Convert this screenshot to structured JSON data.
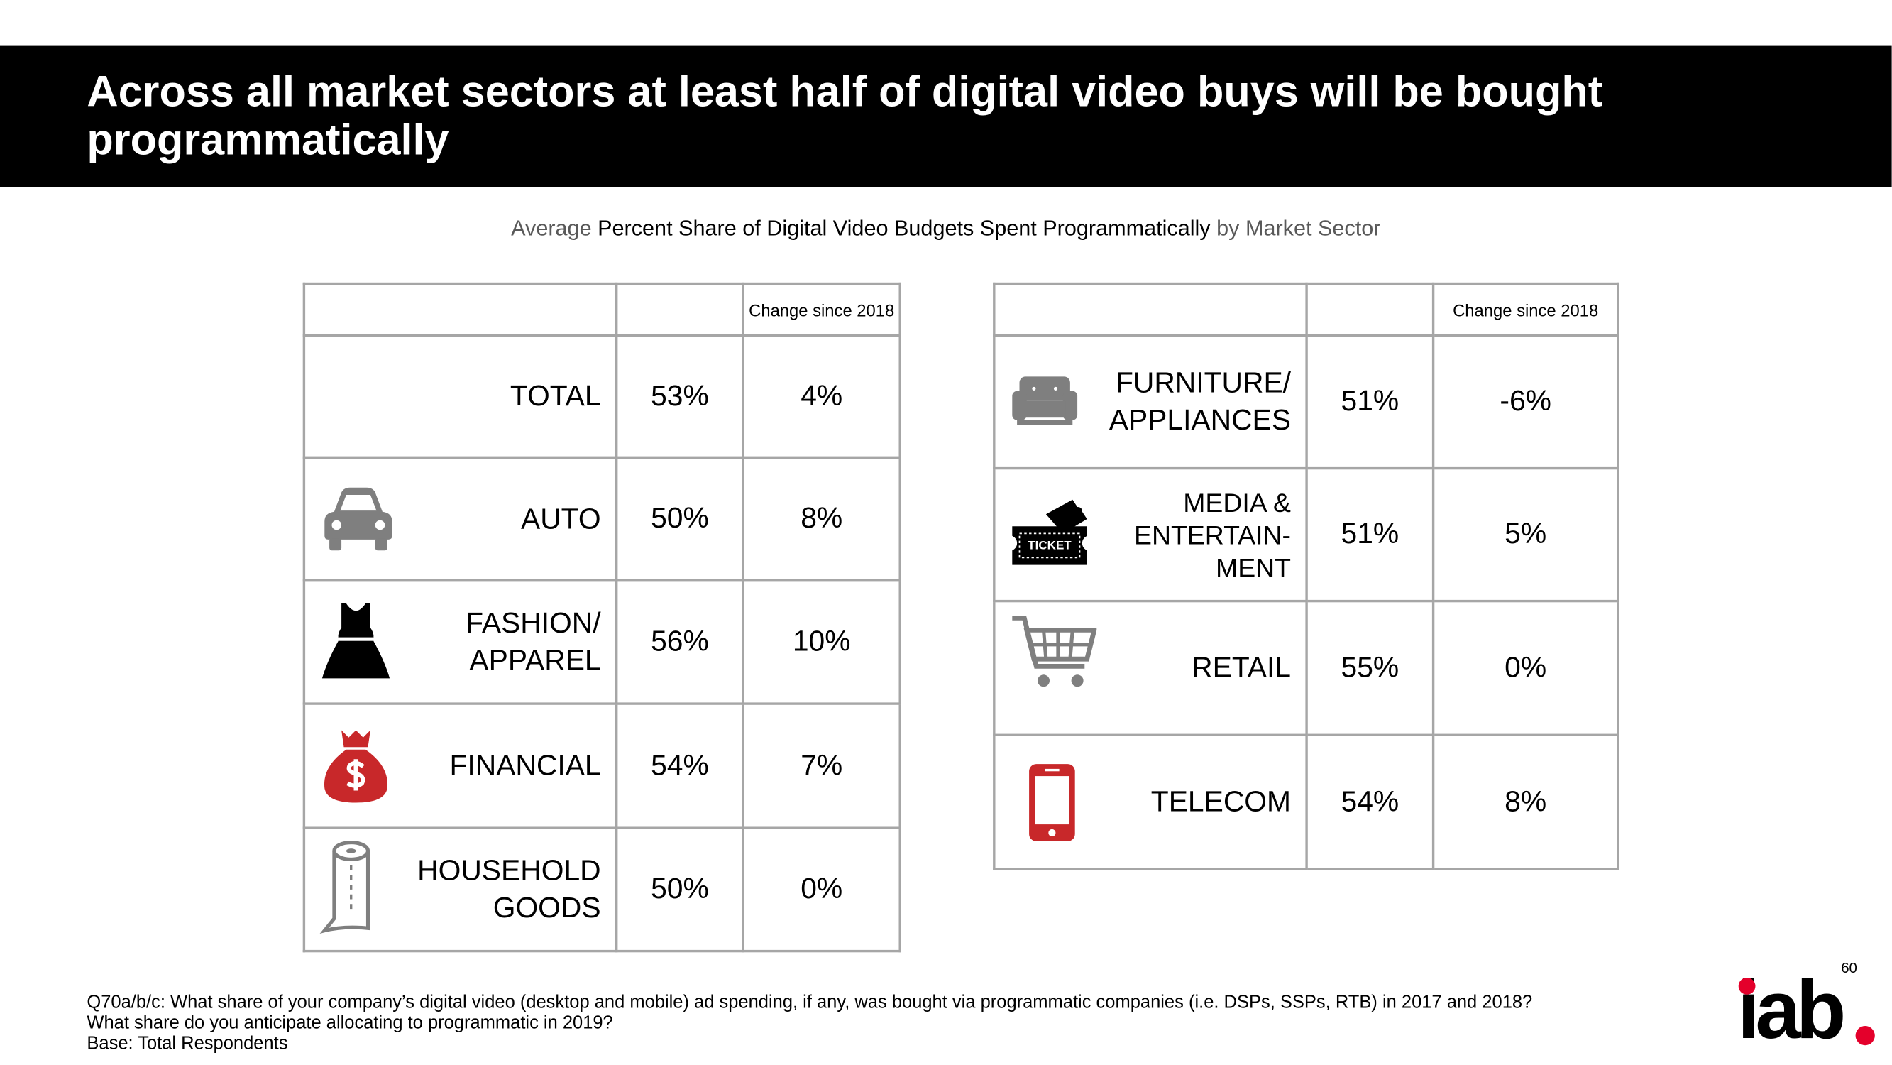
{
  "header": {
    "title": "Across all market sectors at least half of digital video buys will be bought programmatically"
  },
  "subtitle": {
    "prefix": "Average",
    "emphasis": "Percent Share of Digital Video Budgets Spent Programmatically",
    "suffix": "by Market Sector"
  },
  "tables": [
    {
      "change_header": "Change since 2018",
      "rows": [
        {
          "label": [
            "TOTAL"
          ],
          "share": "53%",
          "change": "4%"
        },
        {
          "label": [
            "AUTO"
          ],
          "share": "50%",
          "change": "8%"
        },
        {
          "label": [
            "FASHION/",
            "APPAREL"
          ],
          "share": "56%",
          "change": "10%"
        },
        {
          "label": [
            "FINANCIAL"
          ],
          "share": "54%",
          "change": "7%"
        },
        {
          "label": [
            "HOUSEHOLD",
            "GOODS"
          ],
          "share": "50%",
          "change": "0%"
        }
      ]
    },
    {
      "change_header": "Change since 2018",
      "rows": [
        {
          "label": [
            "FURNITURE/",
            "APPLIANCES"
          ],
          "share": "51%",
          "change": "-6%"
        },
        {
          "label": [
            "MEDIA &",
            "ENTERTAIN-",
            "MENT"
          ],
          "share": "51%",
          "change": "5%"
        },
        {
          "label": [
            "RETAIL"
          ],
          "share": "55%",
          "change": "0%"
        },
        {
          "label": [
            "TELECOM"
          ],
          "share": "54%",
          "change": "8%"
        }
      ]
    }
  ],
  "ticket_text": "TICKET",
  "footnote": [
    "Q70a/b/c: What share of your company’s digital video (desktop and mobile) ad spending, if any, was bought via programmatic companies (i.e. DSPs, SSPs, RTB) in 2017 and 2018?",
    "What share do you anticipate allocating to programmatic in 2019?",
    "Base:  Total Respondents"
  ],
  "page_number": "60",
  "logo": "iab"
}
